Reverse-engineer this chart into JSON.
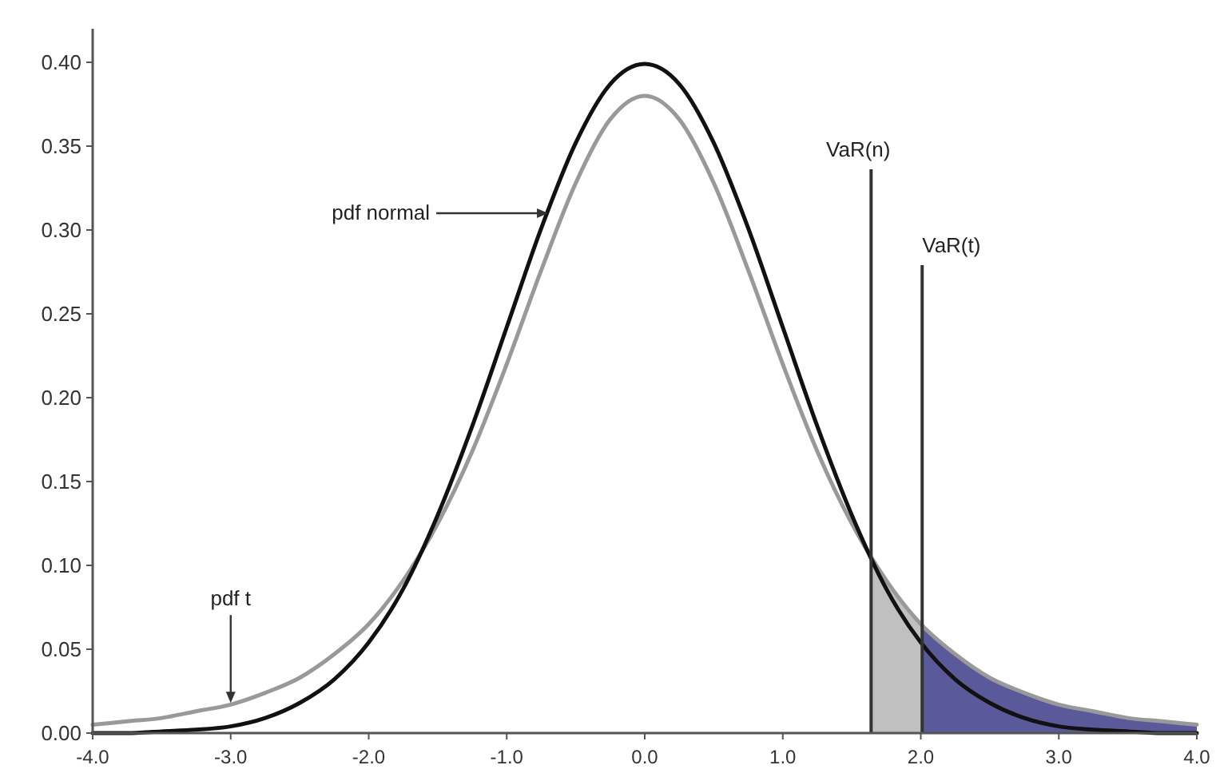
{
  "chart_data": {
    "type": "line",
    "xlim": [
      -4,
      4
    ],
    "ylim": [
      0,
      0.42
    ],
    "xticks": [
      {
        "value": -4,
        "label": "-4.0"
      },
      {
        "value": -3,
        "label": "-3.0"
      },
      {
        "value": -2,
        "label": "-2.0"
      },
      {
        "value": -1,
        "label": "-1.0"
      },
      {
        "value": 0,
        "label": "0.0"
      },
      {
        "value": 1,
        "label": "1.0"
      },
      {
        "value": 2,
        "label": "2.0"
      },
      {
        "value": 3,
        "label": "3.0"
      },
      {
        "value": 4,
        "label": "4.0"
      }
    ],
    "yticks": [
      {
        "value": 0,
        "label": "0.00"
      },
      {
        "value": 0.05,
        "label": "0.05"
      },
      {
        "value": 0.1,
        "label": "0.10"
      },
      {
        "value": 0.15,
        "label": "0.15"
      },
      {
        "value": 0.2,
        "label": "0.20"
      },
      {
        "value": 0.25,
        "label": "0.25"
      },
      {
        "value": 0.3,
        "label": "0.30"
      },
      {
        "value": 0.35,
        "label": "0.35"
      },
      {
        "value": 0.4,
        "label": "0.40"
      }
    ],
    "grid": false,
    "series": [
      {
        "type": "area",
        "color": "#c0c0c0",
        "x": [
          1.64,
          1.75,
          1.9,
          2.01
        ],
        "values": [
          0.104,
          0.091,
          0.074,
          0.064
        ]
      },
      {
        "type": "area",
        "color": "#5a5a9a",
        "x": [
          2.01,
          2.25,
          2.5,
          2.75,
          3,
          3.25,
          3.5,
          3.75,
          4
        ],
        "values": [
          0.064,
          0.047,
          0.033,
          0.024,
          0.017,
          0.013,
          0.009,
          0.007,
          0.005
        ]
      },
      {
        "color": "#999999",
        "x": [
          -4,
          -3.75,
          -3.5,
          -3.25,
          -3,
          -2.75,
          -2.5,
          -2.25,
          -2,
          -1.75,
          -1.5,
          -1.25,
          -1,
          -0.75,
          -0.5,
          -0.25,
          0,
          0.25,
          0.5,
          0.75,
          1,
          1.25,
          1.5,
          1.75,
          2,
          2.25,
          2.5,
          2.75,
          3,
          3.25,
          3.5,
          3.75,
          4
        ],
        "values": [
          0.005,
          0.007,
          0.009,
          0.013,
          0.017,
          0.024,
          0.033,
          0.047,
          0.065,
          0.091,
          0.125,
          0.168,
          0.22,
          0.276,
          0.328,
          0.366,
          0.38,
          0.366,
          0.328,
          0.276,
          0.22,
          0.168,
          0.125,
          0.091,
          0.065,
          0.047,
          0.033,
          0.024,
          0.017,
          0.013,
          0.009,
          0.007,
          0.005
        ]
      },
      {
        "color": "#111111",
        "x": [
          -4,
          -3.75,
          -3.5,
          -3.25,
          -3,
          -2.75,
          -2.5,
          -2.25,
          -2,
          -1.75,
          -1.5,
          -1.25,
          -1,
          -0.75,
          -0.5,
          -0.25,
          0,
          0.25,
          0.5,
          0.75,
          1,
          1.25,
          1.5,
          1.75,
          2,
          2.25,
          2.5,
          2.75,
          3,
          3.25,
          3.5,
          3.75,
          4
        ],
        "values": [
          0.0,
          0.0,
          0.001,
          0.002,
          0.004,
          0.009,
          0.018,
          0.032,
          0.054,
          0.086,
          0.13,
          0.183,
          0.242,
          0.301,
          0.352,
          0.387,
          0.399,
          0.387,
          0.352,
          0.301,
          0.242,
          0.183,
          0.13,
          0.086,
          0.054,
          0.032,
          0.018,
          0.009,
          0.004,
          0.002,
          0.001,
          0.0,
          0.0
        ]
      }
    ],
    "ref_lines": [
      {
        "axis": "x",
        "value": 1.64,
        "label": "VaR(n)",
        "color": "#333333"
      },
      {
        "axis": "x",
        "value": 2.01,
        "label": "VaR(t)",
        "color": "#333333"
      }
    ],
    "annotations": [
      {
        "text": "pdf normal",
        "x": -0.7,
        "y": 0.31
      },
      {
        "text": "pdf t",
        "x": -3.0,
        "y": 0.018
      }
    ]
  }
}
